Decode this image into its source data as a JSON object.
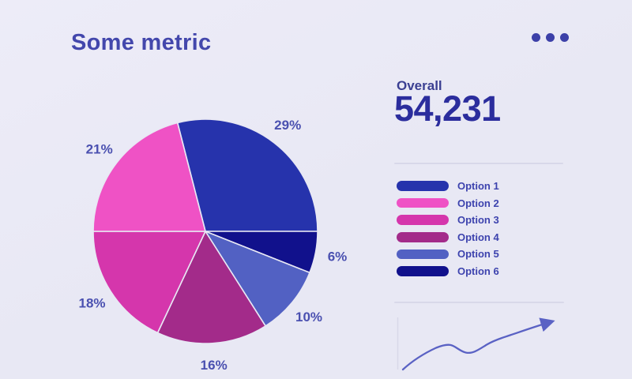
{
  "header": {
    "title": "Some metric",
    "menu_icon": "ellipsis-icon"
  },
  "summary": {
    "label": "Overall",
    "value": "54,231"
  },
  "legend": {
    "items": [
      {
        "label": "Option 1",
        "color": "#2633ac"
      },
      {
        "label": "Option 2",
        "color": "#ef52c5"
      },
      {
        "label": "Option 3",
        "color": "#d536ac"
      },
      {
        "label": "Option 4",
        "color": "#a32b8a"
      },
      {
        "label": "Option 5",
        "color": "#5261c3"
      },
      {
        "label": "Option 6",
        "color": "#11118c"
      }
    ]
  },
  "chart_data": [
    {
      "type": "pie",
      "title": "Some metric",
      "unit": "%",
      "start_angle_deg": -14.4,
      "direction": "clockwise",
      "slices": [
        {
          "label": "Option 1",
          "value": 29,
          "color": "#2633ac"
        },
        {
          "label": "Option 6",
          "value": 6,
          "color": "#11118c"
        },
        {
          "label": "Option 5",
          "value": 10,
          "color": "#5261c3"
        },
        {
          "label": "Option 4",
          "value": 16,
          "color": "#a32b8a"
        },
        {
          "label": "Option 3",
          "value": 18,
          "color": "#d536ac"
        },
        {
          "label": "Option 2",
          "value": 21,
          "color": "#ef52c5"
        }
      ],
      "data_labels": [
        "29%",
        "6%",
        "10%",
        "16%",
        "18%",
        "21%"
      ],
      "legend_position": "right"
    },
    {
      "type": "line",
      "name": "trend-sparkline",
      "x": [
        0,
        1,
        2,
        3,
        4,
        5,
        6,
        7,
        8,
        9
      ],
      "values": [
        2,
        14,
        26,
        30,
        23,
        25,
        34,
        40,
        46,
        54
      ],
      "ylabel": "",
      "xlabel": "",
      "grid": false,
      "annotations": [
        "unlabeled decorative trend, dips mid-way then rises, arrowhead at end"
      ]
    }
  ],
  "colors": {
    "background": "#e8e8f4",
    "background_hi": "#edecf8",
    "title": "#4347ac",
    "overall_label": "#3a3f92",
    "big_number": "#2b2d9d",
    "divider": "#d8d8e9",
    "legend_text": "#3d43ae",
    "pie_label": "#4a50b0",
    "sparkline": "#5a62c4",
    "menu_dots": "#3c40a8",
    "slice_stroke": "#e8e8f4"
  }
}
